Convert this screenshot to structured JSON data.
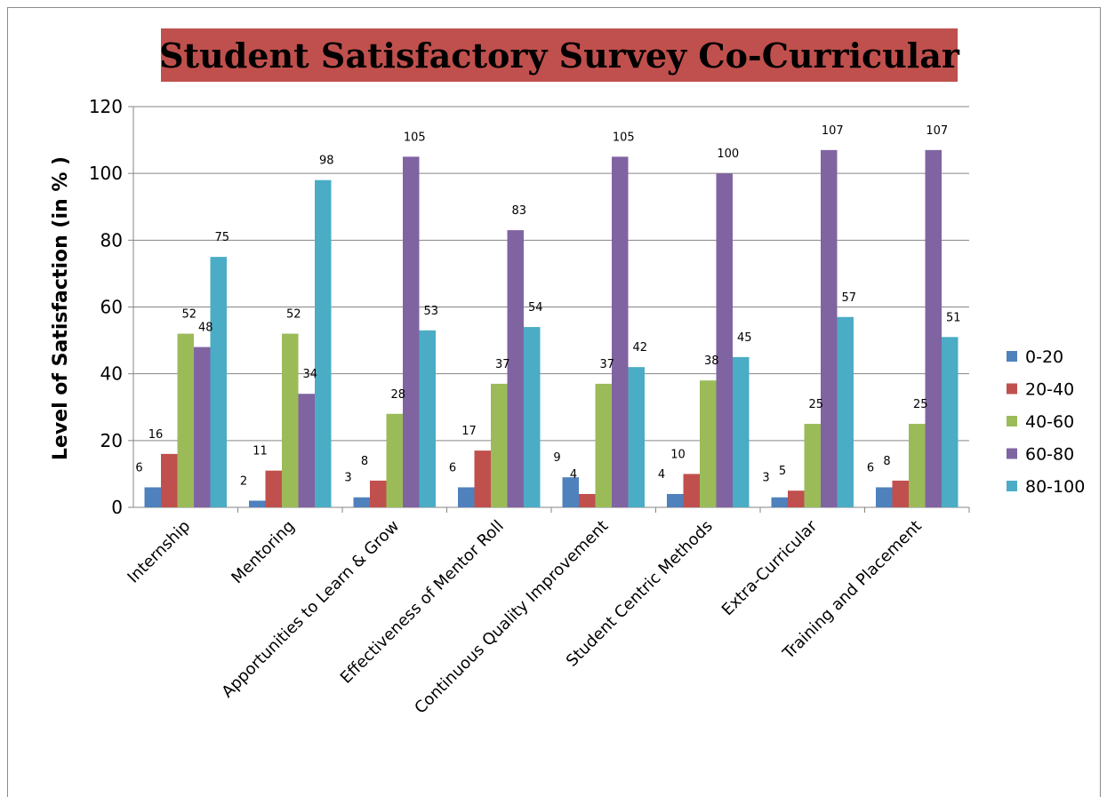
{
  "chart_data": {
    "type": "bar",
    "title": "Student Satisfactory Survey Co-Curricular",
    "ylabel": "Level of Satisfaction (in % )",
    "xlabel": "",
    "ylim": [
      0,
      120
    ],
    "yticks": [
      0,
      20,
      40,
      60,
      80,
      100,
      120
    ],
    "grid": true,
    "legend_position": "right",
    "categories": [
      "Internship",
      "Mentoring",
      "Apportunities to Learn & Grow",
      "Effectiveness of Mentor Roll",
      "Continuous Quality Improvement",
      "Student Centric Methods",
      "Extra-Curricular",
      "Training and Placement"
    ],
    "series": [
      {
        "name": "0-20",
        "color": "#4f81bd",
        "values": [
          6,
          2,
          3,
          6,
          9,
          4,
          3,
          6
        ]
      },
      {
        "name": "20-40",
        "color": "#c0504d",
        "values": [
          16,
          11,
          8,
          17,
          4,
          10,
          5,
          8
        ]
      },
      {
        "name": "40-60",
        "color": "#9bbb59",
        "values": [
          52,
          52,
          28,
          37,
          37,
          38,
          25,
          25
        ]
      },
      {
        "name": "60-80",
        "color": "#8064a2",
        "values": [
          48,
          34,
          105,
          83,
          105,
          100,
          107,
          107
        ]
      },
      {
        "name": "80-100",
        "color": "#4bacc6",
        "values": [
          75,
          98,
          53,
          54,
          42,
          45,
          57,
          51
        ]
      }
    ]
  }
}
